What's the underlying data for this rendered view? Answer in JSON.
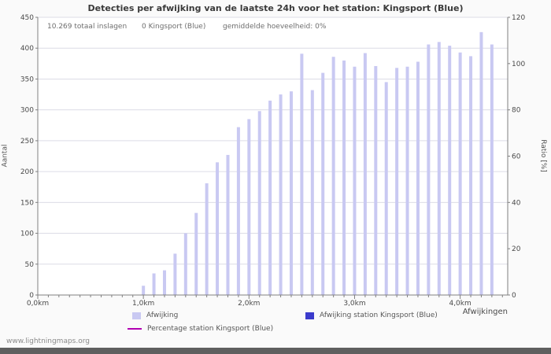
{
  "stats": {
    "total": "10.269 totaal inslagen",
    "station": "0 Kingsport (Blue)",
    "average": "gemiddelde hoeveelheid: 0%"
  },
  "footer": {
    "link": "www.lightningmaps.org"
  },
  "legend": {
    "items": [
      {
        "label": "Afwijking",
        "swatch": "bar",
        "color": "#c9c9f2"
      },
      {
        "label": "Afwijking station Kingsport (Blue)",
        "swatch": "bar",
        "color": "#3b3bcc"
      },
      {
        "label": "Percentage station Kingsport (Blue)",
        "swatch": "line",
        "color": "#b200b2"
      }
    ]
  },
  "chart_data": {
    "type": "bar",
    "title": "Detecties per afwijking van de laatste 24h voor het station: Kingsport (Blue)",
    "xlabel": "Afwijkingen",
    "ylabel_left": "Aantal",
    "ylabel_right": "Ratio [%]",
    "xlim": [
      0,
      4.45
    ],
    "ylim_left": [
      0,
      450
    ],
    "ylim_right": [
      0,
      120
    ],
    "grid": "horizontal",
    "legend_position": "bottom",
    "x_ticks": [
      "0,0km",
      "1,0km",
      "2,0km",
      "3,0km",
      "4,0km"
    ],
    "y_ticks_left": [
      0,
      50,
      100,
      150,
      200,
      250,
      300,
      350,
      400,
      450
    ],
    "y_ticks_right": [
      0,
      20,
      40,
      60,
      80,
      100,
      120
    ],
    "x": [
      0,
      0.1,
      0.2,
      0.3,
      0.4,
      0.5,
      0.6,
      0.7,
      0.8,
      0.9,
      1,
      1.1,
      1.2,
      1.3,
      1.4,
      1.5,
      1.6,
      1.7,
      1.8,
      1.9,
      2,
      2.1,
      2.2,
      2.3,
      2.4,
      2.5,
      2.6,
      2.7,
      2.8,
      2.9,
      3,
      3.1,
      3.2,
      3.3,
      3.4,
      3.5,
      3.6,
      3.7,
      3.8,
      3.9,
      4,
      4.1,
      4.2,
      4.3
    ],
    "series": [
      {
        "name": "Afwijking",
        "color": "#c9c9f2",
        "render": "bar",
        "values": [
          0,
          0,
          0,
          0,
          0,
          0,
          0,
          0,
          0,
          0,
          15,
          35,
          40,
          67,
          100,
          133,
          181,
          215,
          227,
          272,
          285,
          298,
          315,
          325,
          330,
          391,
          332,
          360,
          386,
          380,
          370,
          392,
          371,
          345,
          368,
          370,
          378,
          406,
          410,
          404,
          393,
          387,
          426,
          406
        ]
      },
      {
        "name": "Afwijking station Kingsport (Blue)",
        "color": "#3b3bcc",
        "render": "bar",
        "values": [
          0,
          0,
          0,
          0,
          0,
          0,
          0,
          0,
          0,
          0,
          0,
          0,
          0,
          0,
          0,
          0,
          0,
          0,
          0,
          0,
          0,
          0,
          0,
          0,
          0,
          0,
          0,
          0,
          0,
          0,
          0,
          0,
          0,
          0,
          0,
          0,
          0,
          0,
          0,
          0,
          0,
          0,
          0,
          0
        ]
      },
      {
        "name": "Percentage station Kingsport (Blue)",
        "color": "#b200b2",
        "render": "line",
        "axis": "right",
        "values": [
          0,
          0,
          0,
          0,
          0,
          0,
          0,
          0,
          0,
          0,
          0,
          0,
          0,
          0,
          0,
          0,
          0,
          0,
          0,
          0,
          0,
          0,
          0,
          0,
          0,
          0,
          0,
          0,
          0,
          0,
          0,
          0,
          0,
          0,
          0,
          0,
          0,
          0,
          0,
          0,
          0,
          0,
          0,
          0
        ]
      }
    ]
  }
}
